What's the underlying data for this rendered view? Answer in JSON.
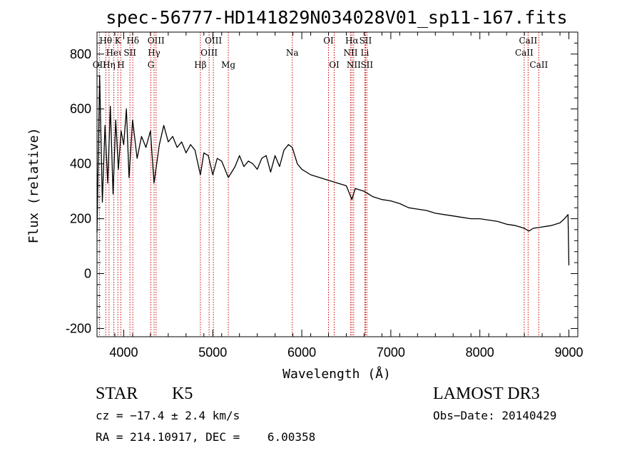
{
  "chart_data": {
    "type": "line",
    "title": "spec-56777-HD141829N034028V01_sp11-167.fits",
    "xlabel": "Wavelength (Å)",
    "ylabel": "Flux (relative)",
    "xlim": [
      3700,
      9100
    ],
    "ylim": [
      -230,
      880
    ],
    "xticks": [
      4000,
      5000,
      6000,
      7000,
      8000,
      9000
    ],
    "yticks": [
      -200,
      0,
      200,
      400,
      600,
      800
    ],
    "series": [
      {
        "name": "spectrum",
        "x": [
          3700,
          3730,
          3760,
          3790,
          3820,
          3850,
          3880,
          3910,
          3940,
          3970,
          4000,
          4030,
          4060,
          4100,
          4150,
          4200,
          4250,
          4300,
          4340,
          4400,
          4450,
          4500,
          4550,
          4600,
          4650,
          4700,
          4750,
          4800,
          4861,
          4900,
          4950,
          5000,
          5050,
          5100,
          5175,
          5250,
          5300,
          5350,
          5400,
          5450,
          5500,
          5550,
          5600,
          5650,
          5700,
          5750,
          5800,
          5850,
          5893,
          5950,
          6000,
          6100,
          6200,
          6300,
          6400,
          6500,
          6563,
          6600,
          6700,
          6800,
          6900,
          7000,
          7100,
          7200,
          7300,
          7400,
          7500,
          7600,
          7700,
          7800,
          7900,
          8000,
          8100,
          8200,
          8300,
          8400,
          8500,
          8550,
          8600,
          8700,
          8800,
          8900,
          8950,
          8990,
          9000
        ],
        "y": [
          150,
          720,
          260,
          540,
          330,
          610,
          290,
          560,
          380,
          520,
          470,
          600,
          350,
          560,
          420,
          500,
          460,
          520,
          330,
          470,
          540,
          480,
          500,
          460,
          480,
          440,
          470,
          450,
          360,
          440,
          430,
          360,
          420,
          410,
          350,
          390,
          430,
          390,
          410,
          400,
          380,
          420,
          430,
          370,
          430,
          390,
          450,
          470,
          460,
          400,
          380,
          360,
          350,
          340,
          330,
          320,
          270,
          310,
          300,
          280,
          270,
          265,
          255,
          240,
          235,
          230,
          220,
          215,
          210,
          205,
          200,
          200,
          195,
          190,
          180,
          175,
          165,
          155,
          165,
          170,
          175,
          185,
          200,
          215,
          30
        ]
      }
    ],
    "lines": [
      {
        "name": "Hθ",
        "wl": 3798,
        "row": 1
      },
      {
        "name": "OII",
        "wl": 3727,
        "row": 3
      },
      {
        "name": "Heι",
        "wl": 3889,
        "row": 2
      },
      {
        "name": "Hη",
        "wl": 3835,
        "row": 3
      },
      {
        "name": "K",
        "wl": 3934,
        "row": 1
      },
      {
        "name": "H",
        "wl": 3968,
        "row": 3
      },
      {
        "name": "Hδ",
        "wl": 4102,
        "row": 1
      },
      {
        "name": "SII",
        "wl": 4070,
        "row": 2
      },
      {
        "name": "OIII",
        "wl": 4363,
        "row": 1
      },
      {
        "name": "Hγ",
        "wl": 4341,
        "row": 2
      },
      {
        "name": "G",
        "wl": 4305,
        "row": 3
      },
      {
        "name": "OIII",
        "wl": 5007,
        "row": 1
      },
      {
        "name": "OIII",
        "wl": 4959,
        "row": 2
      },
      {
        "name": "Hβ",
        "wl": 4861,
        "row": 3
      },
      {
        "name": "Mg",
        "wl": 5175,
        "row": 3
      },
      {
        "name": "Na",
        "wl": 5893,
        "row": 2
      },
      {
        "name": "OI",
        "wl": 6300,
        "row": 1
      },
      {
        "name": "OI",
        "wl": 6364,
        "row": 3
      },
      {
        "name": "Hα",
        "wl": 6563,
        "row": 1
      },
      {
        "name": "SII",
        "wl": 6716,
        "row": 1
      },
      {
        "name": "NII",
        "wl": 6548,
        "row": 2
      },
      {
        "name": "Li",
        "wl": 6708,
        "row": 2
      },
      {
        "name": "NII",
        "wl": 6583,
        "row": 3
      },
      {
        "name": "SII",
        "wl": 6731,
        "row": 3
      },
      {
        "name": "CaII",
        "wl": 8542,
        "row": 1
      },
      {
        "name": "CaII",
        "wl": 8498,
        "row": 2
      },
      {
        "name": "CaII",
        "wl": 8662,
        "row": 3
      }
    ],
    "line_color": "#cc0000",
    "series_color": "#000000"
  },
  "info": {
    "object_class": "STAR",
    "subclass": "K5",
    "survey": "LAMOST DR3",
    "cz": "cz = −17.4 ± 2.4 km/s",
    "obs_date": "Obs−Date: 20140429",
    "coords": "RA = 214.10917, DEC =    6.00358"
  }
}
